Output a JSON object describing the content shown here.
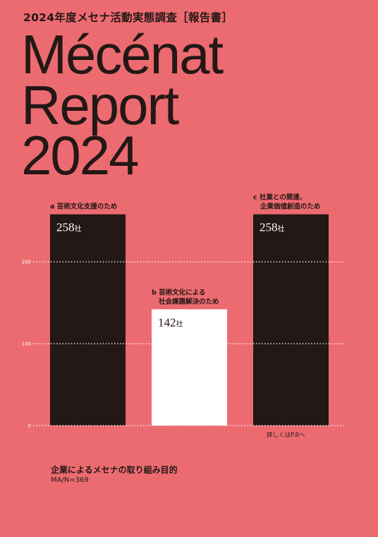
{
  "header": {
    "subtitle": "2024年度メセナ活動実態調査［報告書］",
    "title_line1": "Mécénat",
    "title_line2": "Report",
    "title_line3": "2024"
  },
  "note": "詳しくはP.8へ",
  "footer": {
    "title": "企業によるメセナの取り組み目的",
    "subtitle": "MA/N=369"
  },
  "colors": {
    "background": "#ec6b71",
    "dark_bar": "#231815",
    "light_bar": "#ffffff"
  },
  "chart_data": {
    "type": "bar",
    "ylim": [
      0,
      258
    ],
    "yticks": [
      "0",
      "100",
      "200"
    ],
    "grid": "dotted horizontal lines at ticks",
    "categories": [
      {
        "letter": "a",
        "label_lines": [
          "芸術文化支援のため"
        ],
        "value": 258,
        "unit": "社",
        "color": "#231815"
      },
      {
        "letter": "b",
        "label_lines": [
          "芸術文化による",
          "社会課題解決のため"
        ],
        "value": 142,
        "unit": "社",
        "color": "#ffffff"
      },
      {
        "letter": "c",
        "label_lines": [
          "社業との関連、",
          "企業価値創造のため"
        ],
        "value": 258,
        "unit": "社",
        "color": "#231815"
      }
    ]
  }
}
